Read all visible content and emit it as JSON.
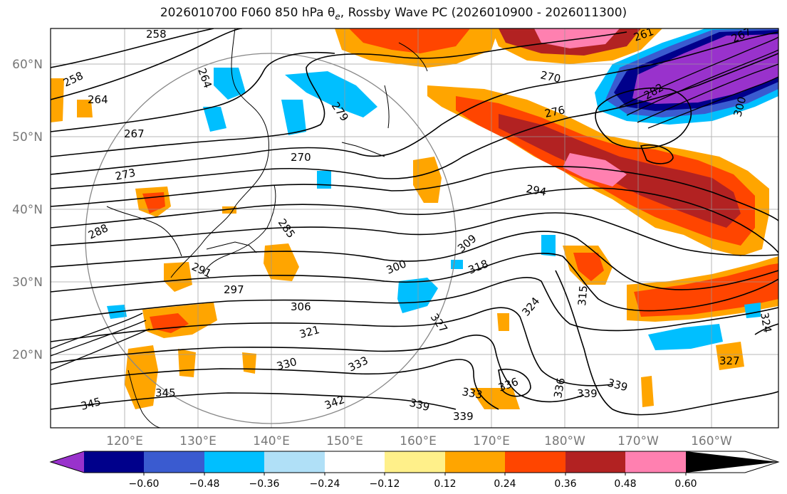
{
  "title": {
    "prefix": "2026010700 F060 850 hPa ",
    "symbol": "θ",
    "subscript": "e",
    "suffix": ", Rossby Wave PC (2026010900 - 2026011300)"
  },
  "axes": {
    "lat_labels": [
      "60°N",
      "50°N",
      "40°N",
      "30°N",
      "20°N"
    ],
    "lon_labels": [
      "120°E",
      "130°E",
      "140°E",
      "150°E",
      "160°E",
      "170°E",
      "180°W",
      "170°W",
      "160°W"
    ]
  },
  "contour_labels": [
    "258",
    "258",
    "264",
    "264",
    "267",
    "270",
    "273",
    "276",
    "279",
    "270",
    "282",
    "285",
    "288",
    "291",
    "294",
    "297",
    "300",
    "306",
    "309",
    "318",
    "321",
    "324",
    "327",
    "327",
    "330",
    "333",
    "336",
    "339",
    "339",
    "339",
    "339",
    "342",
    "345",
    "345",
    "300",
    "315",
    "324",
    "333",
    "336",
    "261",
    "267"
  ],
  "colorbar": {
    "ticks": [
      "−0.60",
      "−0.48",
      "−0.36",
      "−0.24",
      "−0.12",
      "0.12",
      "0.24",
      "0.36",
      "0.48",
      "0.60"
    ],
    "colors": [
      "#9932cc",
      "#00008b",
      "#3a5bd0",
      "#00bfff",
      "#b0e0f7",
      "#ffffff",
      "#fff08a",
      "#ffa500",
      "#ff4500",
      "#b22222",
      "#ff80b0"
    ]
  }
}
